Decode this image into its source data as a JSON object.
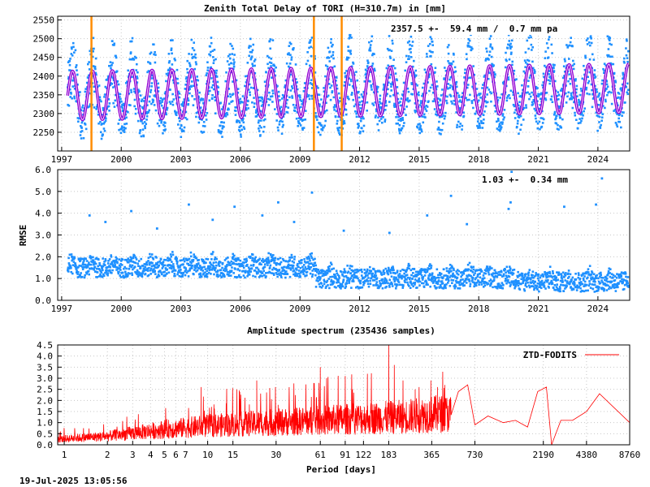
{
  "footer": {
    "timestamp": "19-Jul-2025 13:05:56"
  },
  "colors": {
    "ztd_points": "#1e90ff",
    "ztd_fit": "#9400d3",
    "ztd_fit_core": "#ffffff",
    "breaks": "#ff8c00",
    "rmse_points": "#1e90ff",
    "spectrum": "#ff0000"
  },
  "chart_data": [
    {
      "id": "ztd",
      "type": "scatter",
      "title": "Zenith Total Delay of TORI (H=310.7m) in [mm]",
      "annotation": "2357.5 +-  59.4 mm /  0.7 mm pa",
      "xlabel": "",
      "ylabel": "",
      "xlim": [
        1996.8,
        2025.6
      ],
      "ylim": [
        2200,
        2560
      ],
      "xticks": [
        1997,
        2000,
        2003,
        2006,
        2009,
        2012,
        2015,
        2018,
        2021,
        2024
      ],
      "yticks": [
        2250,
        2300,
        2350,
        2400,
        2450,
        2500,
        2550
      ],
      "grid": true,
      "mean": 2357.5,
      "seasonal_amplitude": 65,
      "trend_mm_per_year": 0.7,
      "scatter_spread": 60,
      "data_start": 1997.3,
      "data_end": 2025.55,
      "series": [
        {
          "name": "observations",
          "marker": "square"
        },
        {
          "name": "fit",
          "marker": "line"
        }
      ],
      "breaks": [
        1998.5,
        2009.7,
        2011.1
      ]
    },
    {
      "id": "rmse",
      "type": "scatter",
      "title": "",
      "annotation": "1.03 +-  0.34 mm",
      "xlabel": "",
      "ylabel": "RMSE",
      "xlim": [
        1996.8,
        2025.6
      ],
      "ylim": [
        0.0,
        6.0
      ],
      "xticks": [
        1997,
        2000,
        2003,
        2006,
        2009,
        2012,
        2015,
        2018,
        2021,
        2024
      ],
      "yticks": [
        "0.0",
        "1.0",
        "2.0",
        "3.0",
        "4.0",
        "5.0",
        "6.0"
      ],
      "grid": true,
      "level_before_2009_8": 1.45,
      "level_2009_8_to_2020": 0.95,
      "level_after_2020": 0.8,
      "outliers": [
        [
          1998.4,
          3.9
        ],
        [
          1999.2,
          3.6
        ],
        [
          2000.5,
          4.1
        ],
        [
          2001.8,
          3.3
        ],
        [
          2003.4,
          4.4
        ],
        [
          2004.6,
          3.7
        ],
        [
          2005.7,
          4.3
        ],
        [
          2007.1,
          3.9
        ],
        [
          2007.9,
          4.5
        ],
        [
          2008.7,
          3.6
        ],
        [
          2009.6,
          4.95
        ],
        [
          2011.2,
          3.2
        ],
        [
          2013.5,
          3.1
        ],
        [
          2015.4,
          3.9
        ],
        [
          2016.6,
          4.8
        ],
        [
          2017.4,
          3.5
        ],
        [
          2019.5,
          4.2
        ],
        [
          2019.6,
          4.5
        ],
        [
          2019.65,
          5.9
        ],
        [
          2022.3,
          4.3
        ],
        [
          2023.9,
          4.4
        ],
        [
          2024.2,
          5.6
        ]
      ]
    },
    {
      "id": "spectrum",
      "type": "line",
      "title": "Amplitude spectrum (235436 samples)",
      "xlabel": "Period [days]",
      "ylabel": "",
      "xscale": "log",
      "xlim": [
        0.9,
        8760
      ],
      "ylim": [
        0.0,
        4.5
      ],
      "xticks": [
        "1",
        "2",
        "3",
        "4",
        "5",
        "6",
        "7",
        "10",
        "15",
        "30",
        "61",
        "91",
        "122",
        "183",
        "365",
        "730",
        "2190",
        "4380",
        "8760"
      ],
      "xtick_values": [
        1,
        2,
        3,
        4,
        5,
        6,
        7,
        10,
        15,
        30,
        61,
        91,
        122,
        183,
        365,
        730,
        2190,
        4380,
        8760
      ],
      "yticks": [
        "0.0",
        "0.5",
        "1.0",
        "1.5",
        "2.0",
        "2.5",
        "3.0",
        "3.5",
        "4.0",
        "4.5"
      ],
      "grid": true,
      "legend": "top-right",
      "series": [
        {
          "name": "ZTD-FODITS",
          "envelope": [
            [
              0.9,
              0.3
            ],
            [
              1,
              0.35
            ],
            [
              2,
              0.5
            ],
            [
              5,
              0.9
            ],
            [
              10,
              1.1
            ],
            [
              30,
              1.3
            ],
            [
              100,
              1.5
            ],
            [
              200,
              1.6
            ],
            [
              400,
              1.8
            ]
          ],
          "peaks": [
            [
              1,
              0.6
            ],
            [
              2,
              0.5
            ],
            [
              9,
              2.6
            ],
            [
              16,
              2.5
            ],
            [
              22,
              2.9
            ],
            [
              31,
              1.8
            ],
            [
              61,
              3.5
            ],
            [
              91,
              3.1
            ],
            [
              130,
              3.2
            ],
            [
              183,
              4.5
            ],
            [
              200,
              3.6
            ],
            [
              230,
              2.9
            ],
            [
              280,
              2.5
            ],
            [
              360,
              2.9
            ],
            [
              400,
              2.6
            ],
            [
              450,
              2.7
            ]
          ],
          "low_freq": [
            [
              560,
              2.4
            ],
            [
              650,
              2.7
            ],
            [
              730,
              0.9
            ],
            [
              900,
              1.3
            ],
            [
              1150,
              1.0
            ],
            [
              1400,
              1.1
            ],
            [
              1700,
              0.8
            ],
            [
              2000,
              2.4
            ],
            [
              2300,
              2.6
            ],
            [
              2500,
              0.0
            ],
            [
              2900,
              1.1
            ],
            [
              3500,
              1.1
            ],
            [
              4380,
              1.5
            ],
            [
              5400,
              2.3
            ],
            [
              8760,
              1.0
            ]
          ]
        }
      ]
    }
  ]
}
